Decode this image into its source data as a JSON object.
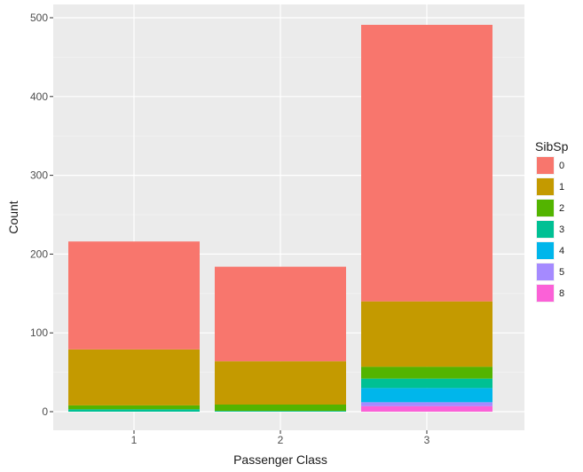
{
  "chart_data": {
    "type": "bar",
    "stacked": true,
    "xlabel": "Passenger Class",
    "ylabel": "Count",
    "categories": [
      "1",
      "2",
      "3"
    ],
    "ylim": [
      0,
      520
    ],
    "yticks": [
      0,
      100,
      200,
      300,
      400,
      500
    ],
    "grid": true,
    "legend": {
      "title": "SibSp",
      "position": "right"
    },
    "series": [
      {
        "name": "0",
        "color": "#F8766D",
        "values": [
          137,
          120,
          351
        ]
      },
      {
        "name": "1",
        "color": "#C49A00",
        "values": [
          71,
          55,
          83
        ]
      },
      {
        "name": "2",
        "color": "#53B400",
        "values": [
          5,
          8,
          15
        ]
      },
      {
        "name": "3",
        "color": "#00C094",
        "values": [
          3,
          1,
          12
        ]
      },
      {
        "name": "4",
        "color": "#00B6EB",
        "values": [
          0,
          0,
          18
        ]
      },
      {
        "name": "5",
        "color": "#A58AFF",
        "values": [
          0,
          0,
          5
        ]
      },
      {
        "name": "8",
        "color": "#FB61D7",
        "values": [
          0,
          0,
          7
        ]
      }
    ]
  }
}
